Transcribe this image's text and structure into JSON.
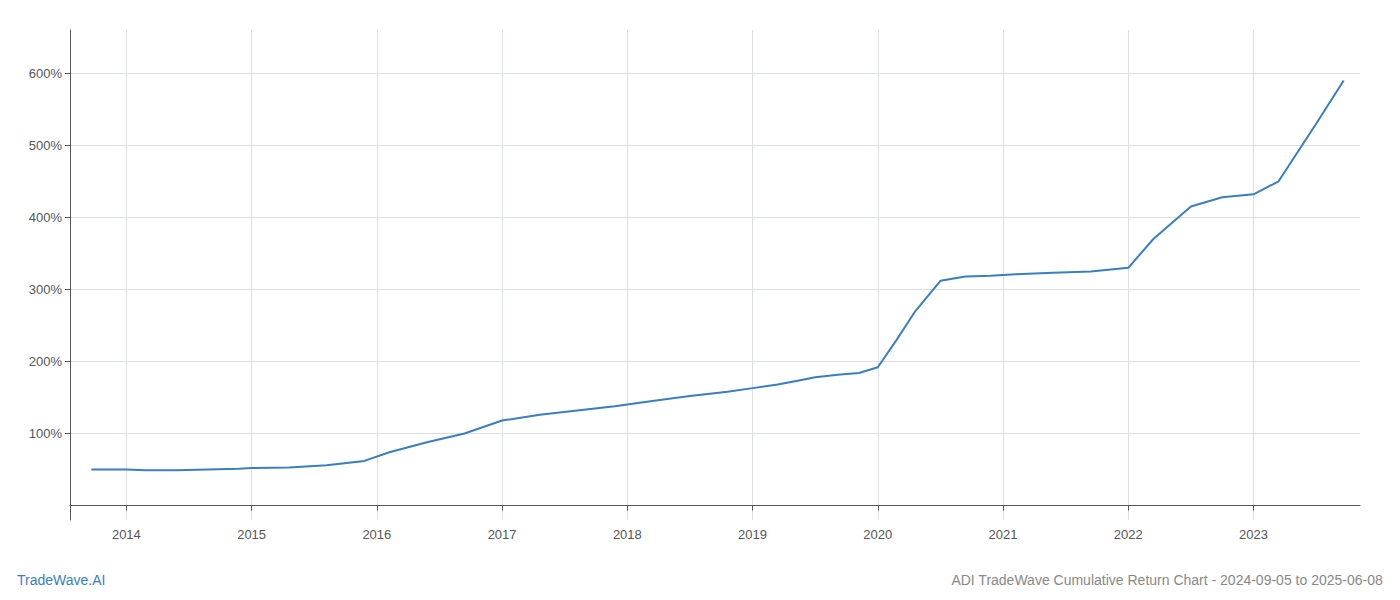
{
  "chart_data": {
    "type": "line",
    "title": "ADI TradeWave Cumulative Return Chart - 2024-09-05 to 2025-06-08",
    "annotations": [
      "TradeWave.AI"
    ],
    "color": "#3a7ebf",
    "x": [
      2013.72,
      2014.0,
      2014.15,
      2014.4,
      2014.65,
      2014.9,
      2015.0,
      2015.3,
      2015.6,
      2015.9,
      2016.1,
      2016.4,
      2016.7,
      2017.0,
      2017.3,
      2017.6,
      2017.9,
      2018.2,
      2018.5,
      2018.8,
      2019.0,
      2019.2,
      2019.35,
      2019.5,
      2019.7,
      2019.85,
      2020.0,
      2020.15,
      2020.3,
      2020.5,
      2020.7,
      2020.9,
      2021.1,
      2021.4,
      2021.7,
      2022.0,
      2022.2,
      2022.5,
      2022.75,
      2023.0,
      2023.2,
      2023.5,
      2023.72
    ],
    "values": [
      50,
      50,
      49,
      49,
      50,
      51,
      52,
      53,
      56,
      62,
      74,
      88,
      100,
      118,
      126,
      132,
      138,
      145,
      152,
      158,
      163,
      168,
      173,
      178,
      182,
      184,
      192,
      230,
      270,
      312,
      318,
      319,
      321,
      323,
      325,
      330,
      370,
      415,
      428,
      432,
      450,
      530,
      590
    ],
    "xlim": [
      2013.55,
      2023.85
    ],
    "xticks": [
      2014,
      2015,
      2016,
      2017,
      2018,
      2019,
      2020,
      2021,
      2022,
      2023
    ],
    "ylim": [
      -20,
      660
    ],
    "yticks": [
      {
        "value": 100,
        "label": "100%"
      },
      {
        "value": 200,
        "label": "200%"
      },
      {
        "value": 300,
        "label": "300%"
      },
      {
        "value": 400,
        "label": "400%"
      },
      {
        "value": 500,
        "label": "500%"
      },
      {
        "value": 600,
        "label": "600%"
      }
    ],
    "grid": true
  }
}
